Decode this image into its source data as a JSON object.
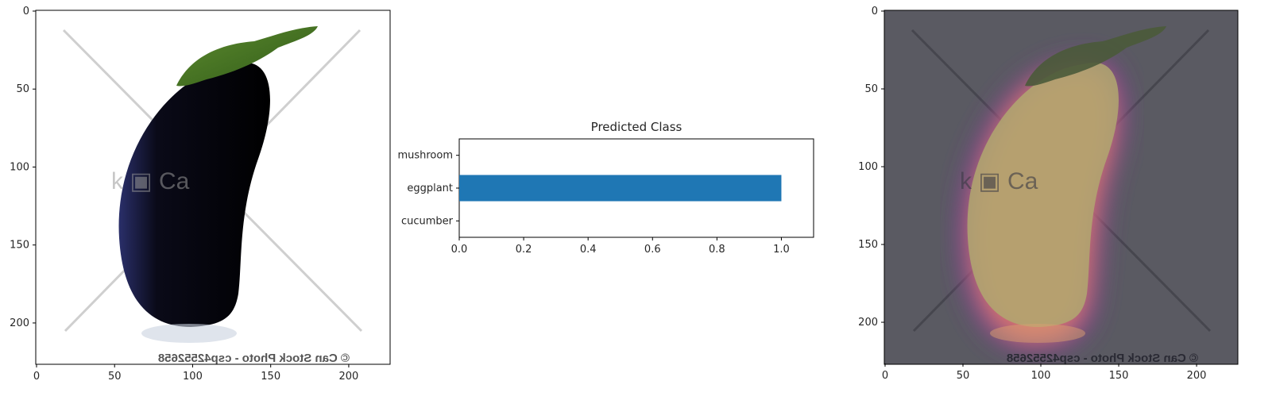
{
  "panels": {
    "left_image": {
      "xticks": [
        "0",
        "50",
        "100",
        "150",
        "200"
      ],
      "yticks": [
        "0",
        "50",
        "100",
        "150",
        "200"
      ],
      "xlim": [
        -0.5,
        226.5
      ],
      "ylim": [
        226.5,
        -0.5
      ],
      "watermark_mid": "k  ▣ Ca",
      "watermark_bottom": "© Can Stock Photo - csp42552658"
    },
    "right_image": {
      "xticks": [
        "0",
        "50",
        "100",
        "150",
        "200"
      ],
      "yticks": [
        "0",
        "50",
        "100",
        "150",
        "200"
      ],
      "xlim": [
        -0.5,
        226.5
      ],
      "ylim": [
        226.5,
        -0.5
      ],
      "watermark_mid": "k  ▣ Ca",
      "watermark_bottom": "© Can Stock Photo - csp42552658"
    }
  },
  "chart_data": {
    "type": "bar",
    "orientation": "horizontal",
    "title": "Predicted Class",
    "categories": [
      "cucumber",
      "eggplant",
      "mushroom"
    ],
    "values": [
      0.0,
      1.0,
      0.0
    ],
    "xlim": [
      0,
      1.1
    ],
    "xticks": [
      "0.0",
      "0.2",
      "0.4",
      "0.6",
      "0.8",
      "1.0"
    ],
    "bar_color": "#1f77b4",
    "grid": false
  }
}
